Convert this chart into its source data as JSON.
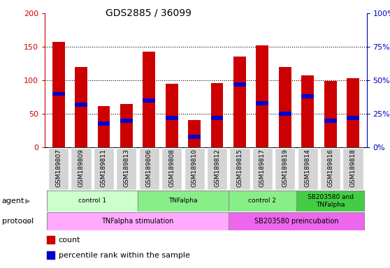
{
  "title": "GDS2885 / 36099",
  "samples": [
    "GSM189807",
    "GSM189809",
    "GSM189811",
    "GSM189813",
    "GSM189806",
    "GSM189808",
    "GSM189810",
    "GSM189812",
    "GSM189815",
    "GSM189817",
    "GSM189819",
    "GSM189814",
    "GSM189816",
    "GSM189818"
  ],
  "count_values": [
    157,
    120,
    62,
    65,
    143,
    95,
    41,
    96,
    136,
    152,
    120,
    108,
    99,
    103
  ],
  "percentile_values": [
    40,
    32,
    18,
    20,
    35,
    22,
    8,
    22,
    47,
    33,
    25,
    38,
    20,
    22
  ],
  "ylim_left": [
    0,
    200
  ],
  "yticks_left": [
    0,
    50,
    100,
    150,
    200
  ],
  "yticks_right": [
    0,
    25,
    50,
    75,
    100
  ],
  "ytick_labels_right": [
    "0",
    "25",
    "50",
    "75",
    "100%"
  ],
  "bar_color_count": "#cc0000",
  "bar_color_percentile": "#0000cc",
  "bar_width": 0.55,
  "agent_groups": [
    {
      "label": "control 1",
      "start": 0,
      "end": 3,
      "color": "#ccffcc"
    },
    {
      "label": "TNFalpha",
      "start": 4,
      "end": 7,
      "color": "#88ee88"
    },
    {
      "label": "control 2",
      "start": 8,
      "end": 10,
      "color": "#88ee88"
    },
    {
      "label": "SB203580 and\nTNFalpha",
      "start": 11,
      "end": 13,
      "color": "#44cc44"
    }
  ],
  "protocol_groups": [
    {
      "label": "TNFalpha stimulation",
      "start": 0,
      "end": 7,
      "color": "#ffaaff"
    },
    {
      "label": "SB203580 preincubation",
      "start": 8,
      "end": 13,
      "color": "#ee66ee"
    }
  ],
  "legend_count_label": "count",
  "legend_percentile_label": "percentile rank within the sample",
  "agent_label": "agent",
  "protocol_label": "protocol",
  "tick_color_left": "#cc0000",
  "tick_color_right": "#0000bb"
}
